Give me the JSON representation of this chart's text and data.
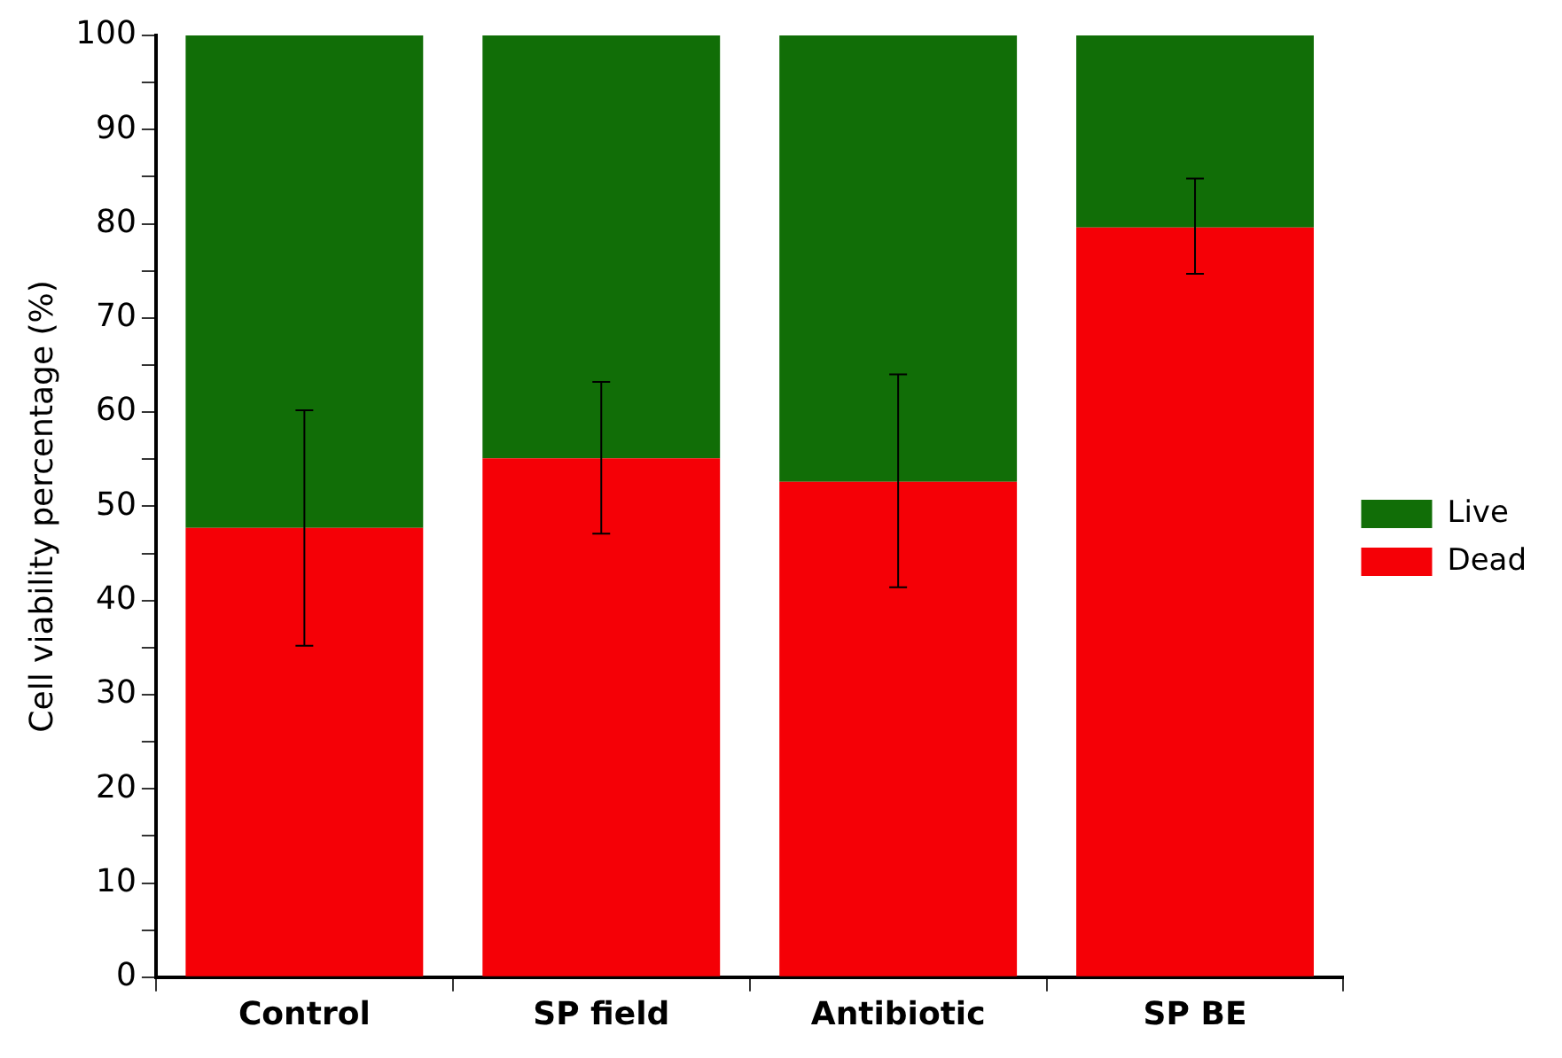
{
  "chart_data": {
    "type": "bar",
    "stacked": true,
    "ylabel": "Cell viability percentage (%)",
    "categories": [
      "Control",
      "SP field",
      "Antibiotic",
      "SP BE"
    ],
    "series": [
      {
        "name": "Dead",
        "color": "#f50006",
        "values": [
          47.7,
          55.1,
          52.6,
          79.6
        ],
        "errors": [
          [
            35.2,
            60.2
          ],
          [
            47.1,
            63.2
          ],
          [
            41.4,
            64.0
          ],
          [
            74.7,
            84.8
          ]
        ]
      },
      {
        "name": "Live",
        "color": "#116e07",
        "values": [
          52.3,
          44.9,
          47.4,
          20.4
        ]
      }
    ],
    "ylim": [
      0,
      100
    ],
    "yticks": [
      0,
      {
        "value": 5,
        "label": null
      },
      10,
      {
        "value": 15,
        "label": null
      },
      20,
      {
        "value": 25,
        "label": null
      },
      30,
      {
        "value": 35,
        "label": null
      },
      40,
      {
        "value": 45,
        "label": null
      },
      50,
      {
        "value": 55,
        "label": null
      },
      60,
      {
        "value": 65,
        "label": null
      },
      70,
      {
        "value": 75,
        "label": null
      },
      80,
      {
        "value": 85,
        "label": null
      },
      90,
      {
        "value": 95,
        "label": null
      },
      100
    ],
    "grid": false,
    "legend": "right"
  }
}
